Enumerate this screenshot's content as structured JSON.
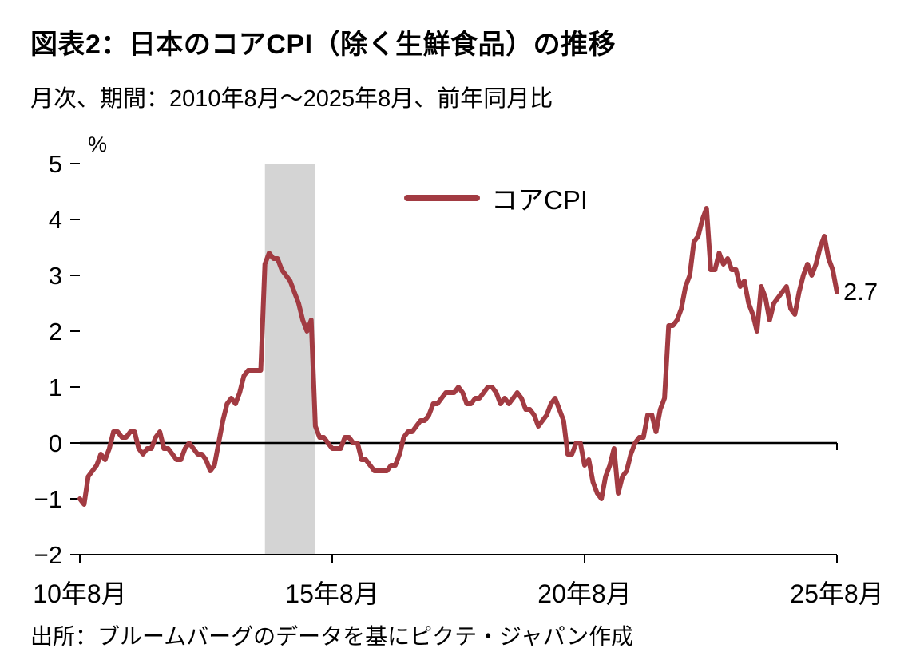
{
  "header": {
    "title": "図表2：日本のコアCPI（除く生鮮食品）の推移",
    "subtitle": "月次、期間：2010年8月～2025年8月、前年同月比"
  },
  "footer": {
    "source": "出所：ブルームバーグのデータを基にピクテ・ジャパン作成"
  },
  "chart_data": {
    "type": "line",
    "unit_label": "%",
    "x_start": "2010-08",
    "x_end": "2025-08",
    "frequency": "monthly",
    "ylim": [
      -2,
      5
    ],
    "y_ticks": [
      5,
      4,
      3,
      2,
      1,
      0,
      -1,
      -2
    ],
    "x_tick_labels": [
      "10年8月",
      "15年8月",
      "20年8月",
      "25年8月"
    ],
    "x_tick_indices": [
      0,
      60,
      120,
      180
    ],
    "grid": "zero-line-only",
    "legend_position": "top-center",
    "end_label": "2.7",
    "shaded_region": {
      "from_index": 44,
      "to_index": 56,
      "color": "#D4D4D4"
    },
    "series": [
      {
        "name": "コアCPI",
        "color": "#A23B42",
        "values": [
          -1.0,
          -1.1,
          -0.6,
          -0.5,
          -0.4,
          -0.2,
          -0.3,
          -0.1,
          0.2,
          0.2,
          0.1,
          0.1,
          0.2,
          0.2,
          -0.1,
          -0.2,
          -0.1,
          -0.1,
          0.1,
          0.2,
          -0.1,
          -0.1,
          -0.2,
          -0.3,
          -0.3,
          -0.1,
          0.0,
          -0.1,
          -0.2,
          -0.2,
          -0.3,
          -0.5,
          -0.4,
          0.0,
          0.4,
          0.7,
          0.8,
          0.7,
          0.9,
          1.2,
          1.3,
          1.3,
          1.3,
          1.3,
          3.2,
          3.4,
          3.3,
          3.3,
          3.1,
          3.0,
          2.9,
          2.7,
          2.5,
          2.2,
          2.0,
          2.2,
          0.3,
          0.1,
          0.1,
          0.0,
          -0.1,
          -0.1,
          -0.1,
          0.1,
          0.1,
          0.0,
          0.0,
          -0.3,
          -0.3,
          -0.4,
          -0.5,
          -0.5,
          -0.5,
          -0.5,
          -0.4,
          -0.4,
          -0.2,
          0.1,
          0.2,
          0.2,
          0.3,
          0.4,
          0.4,
          0.5,
          0.7,
          0.7,
          0.8,
          0.9,
          0.9,
          0.9,
          1.0,
          0.9,
          0.7,
          0.7,
          0.8,
          0.8,
          0.9,
          1.0,
          1.0,
          0.9,
          0.7,
          0.8,
          0.7,
          0.8,
          0.9,
          0.8,
          0.6,
          0.6,
          0.5,
          0.3,
          0.4,
          0.5,
          0.7,
          0.8,
          0.6,
          0.4,
          -0.2,
          -0.2,
          0.0,
          0.0,
          -0.4,
          -0.3,
          -0.7,
          -0.9,
          -1.0,
          -0.6,
          -0.4,
          -0.1,
          -0.9,
          -0.6,
          -0.5,
          -0.2,
          0.0,
          0.1,
          0.1,
          0.5,
          0.5,
          0.2,
          0.6,
          0.8,
          2.1,
          2.1,
          2.2,
          2.4,
          2.8,
          3.0,
          3.6,
          3.7,
          4.0,
          4.2,
          3.1,
          3.1,
          3.4,
          3.2,
          3.3,
          3.1,
          3.1,
          2.8,
          2.9,
          2.5,
          2.3,
          2.0,
          2.8,
          2.6,
          2.2,
          2.5,
          2.6,
          2.7,
          2.8,
          2.4,
          2.3,
          2.7,
          3.0,
          3.2,
          3.0,
          3.2,
          3.5,
          3.7,
          3.3,
          3.1,
          2.7
        ]
      }
    ]
  },
  "colors": {
    "line": "#A23B42",
    "band": "#D4D4D4",
    "axis": "#000000",
    "text": "#000000"
  }
}
